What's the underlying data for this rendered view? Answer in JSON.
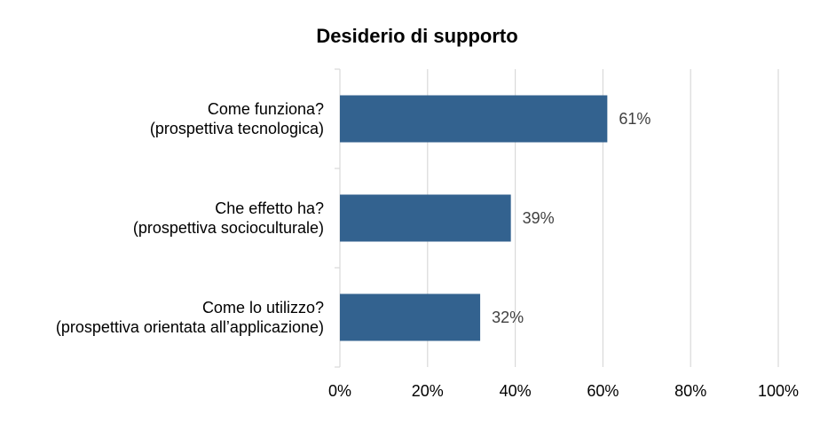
{
  "chart_data": {
    "type": "bar",
    "orientation": "horizontal",
    "title": "Desiderio di supporto",
    "categories": [
      [
        "Come funziona?",
        "(prospettiva tecnologica)"
      ],
      [
        "Che effetto ha?",
        "(prospettiva socioculturale)"
      ],
      [
        "Come lo utilizzo?",
        "(prospettiva orientata all’applicazione)"
      ]
    ],
    "values": [
      61,
      39,
      32
    ],
    "data_labels": [
      "61%",
      "39%",
      "32%"
    ],
    "xlim": [
      0,
      100
    ],
    "x_ticks": [
      0,
      20,
      40,
      60,
      80,
      100
    ],
    "x_tick_labels": [
      "0%",
      "20%",
      "40%",
      "60%",
      "80%",
      "100%"
    ],
    "grid": true,
    "legend": "none",
    "bar_color": "#33628f",
    "grid_color": "#d9d9d9"
  }
}
